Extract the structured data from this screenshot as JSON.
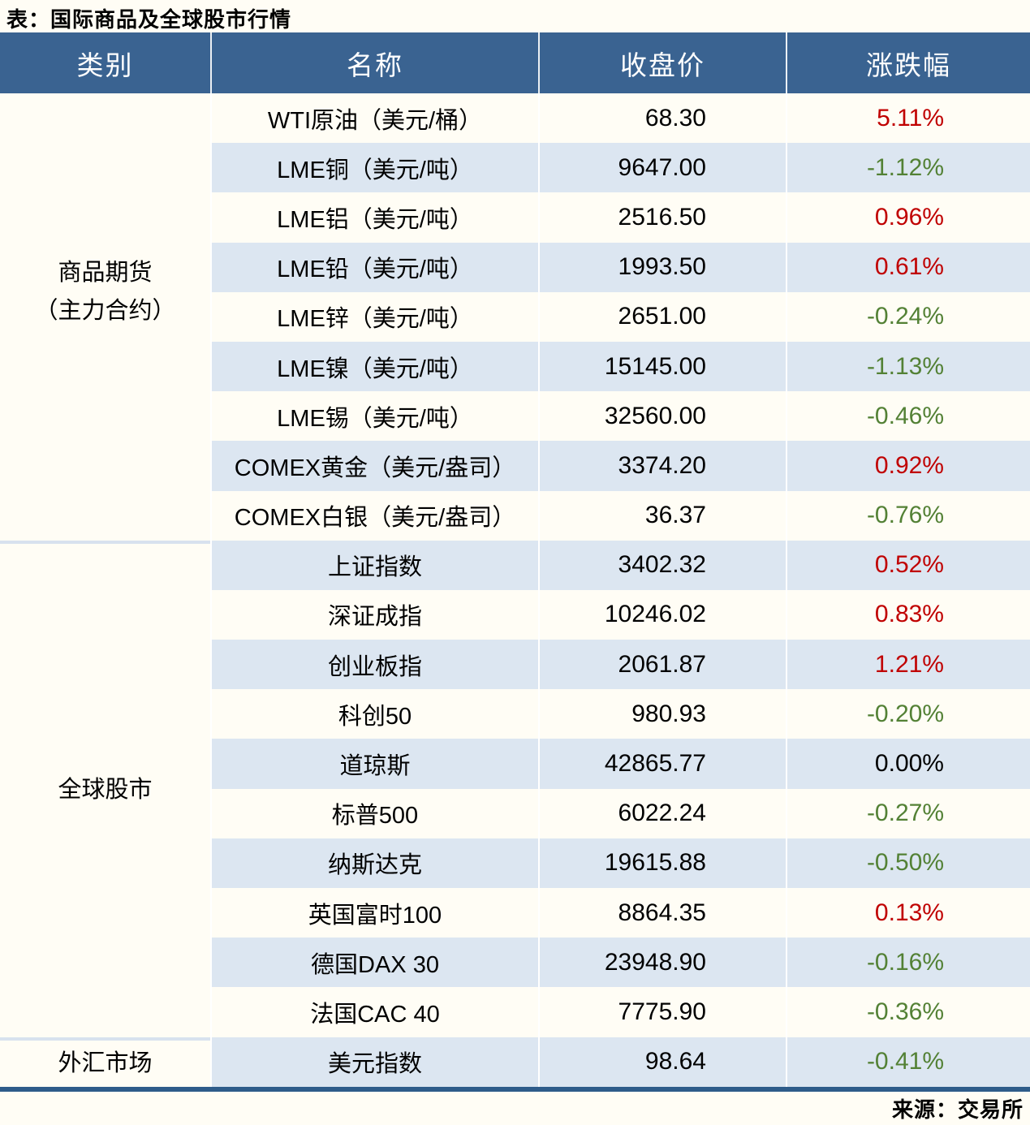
{
  "title": "表：国际商品及全球股市行情",
  "source": "来源：交易所",
  "palette": {
    "header_bg": "#3a6391",
    "alt_row_bg": "#dce6f1",
    "page_bg": "#fffdf5",
    "group_separator": "#d8e2ee",
    "bottom_rule": "#2e5c8a",
    "up": "#c00000",
    "down": "#538135",
    "flat": "#000000"
  },
  "table": {
    "headers": [
      "类别",
      "名称",
      "收盘价",
      "涨跌幅"
    ],
    "categories": [
      {
        "label": "商品期货\n（主力合约）",
        "span": 9
      },
      {
        "label": "全球股市",
        "span": 10
      },
      {
        "label": "外汇市场",
        "span": 1
      }
    ],
    "rows": [
      {
        "name": "WTI原油（美元/桶）",
        "close": "68.30",
        "change": "5.11%",
        "trend": "up"
      },
      {
        "name": "LME铜（美元/吨）",
        "close": "9647.00",
        "change": "-1.12%",
        "trend": "down"
      },
      {
        "name": "LME铝（美元/吨）",
        "close": "2516.50",
        "change": "0.96%",
        "trend": "up"
      },
      {
        "name": "LME铅（美元/吨）",
        "close": "1993.50",
        "change": "0.61%",
        "trend": "up"
      },
      {
        "name": "LME锌（美元/吨）",
        "close": "2651.00",
        "change": "-0.24%",
        "trend": "down"
      },
      {
        "name": "LME镍（美元/吨）",
        "close": "15145.00",
        "change": "-1.13%",
        "trend": "down"
      },
      {
        "name": "LME锡（美元/吨）",
        "close": "32560.00",
        "change": "-0.46%",
        "trend": "down"
      },
      {
        "name": "COMEX黄金（美元/盎司）",
        "close": "3374.20",
        "change": "0.92%",
        "trend": "up"
      },
      {
        "name": "COMEX白银（美元/盎司）",
        "close": "36.37",
        "change": "-0.76%",
        "trend": "down"
      },
      {
        "name": "上证指数",
        "close": "3402.32",
        "change": "0.52%",
        "trend": "up"
      },
      {
        "name": "深证成指",
        "close": "10246.02",
        "change": "0.83%",
        "trend": "up"
      },
      {
        "name": "创业板指",
        "close": "2061.87",
        "change": "1.21%",
        "trend": "up"
      },
      {
        "name": "科创50",
        "close": "980.93",
        "change": "-0.20%",
        "trend": "down"
      },
      {
        "name": "道琼斯",
        "close": "42865.77",
        "change": "0.00%",
        "trend": "flat"
      },
      {
        "name": "标普500",
        "close": "6022.24",
        "change": "-0.27%",
        "trend": "down"
      },
      {
        "name": "纳斯达克",
        "close": "19615.88",
        "change": "-0.50%",
        "trend": "down"
      },
      {
        "name": "英国富时100",
        "close": "8864.35",
        "change": "0.13%",
        "trend": "up"
      },
      {
        "name": "德国DAX 30",
        "close": "23948.90",
        "change": "-0.16%",
        "trend": "down"
      },
      {
        "name": "法国CAC 40",
        "close": "7775.90",
        "change": "-0.36%",
        "trend": "down"
      },
      {
        "name": "美元指数",
        "close": "98.64",
        "change": "-0.41%",
        "trend": "down"
      }
    ]
  },
  "chart_data": {
    "type": "table",
    "title": "表：国际商品及全球股市行情",
    "columns": [
      "类别",
      "名称",
      "收盘价",
      "涨跌幅"
    ],
    "groups": [
      {
        "category": "商品期货（主力合约）",
        "rows": [
          [
            "WTI原油（美元/桶）",
            68.3,
            "5.11%"
          ],
          [
            "LME铜（美元/吨）",
            9647.0,
            "-1.12%"
          ],
          [
            "LME铝（美元/吨）",
            2516.5,
            "0.96%"
          ],
          [
            "LME铅（美元/吨）",
            1993.5,
            "0.61%"
          ],
          [
            "LME锌（美元/吨）",
            2651.0,
            "-0.24%"
          ],
          [
            "LME镍（美元/吨）",
            15145.0,
            "-1.13%"
          ],
          [
            "LME锡（美元/吨）",
            32560.0,
            "-0.46%"
          ],
          [
            "COMEX黄金（美元/盎司）",
            3374.2,
            "0.92%"
          ],
          [
            "COMEX白银（美元/盎司）",
            36.37,
            "-0.76%"
          ]
        ]
      },
      {
        "category": "全球股市",
        "rows": [
          [
            "上证指数",
            3402.32,
            "0.52%"
          ],
          [
            "深证成指",
            10246.02,
            "0.83%"
          ],
          [
            "创业板指",
            2061.87,
            "1.21%"
          ],
          [
            "科创50",
            980.93,
            "-0.20%"
          ],
          [
            "道琼斯",
            42865.77,
            "0.00%"
          ],
          [
            "标普500",
            6022.24,
            "-0.27%"
          ],
          [
            "纳斯达克",
            19615.88,
            "-0.50%"
          ],
          [
            "英国富时100",
            8864.35,
            "0.13%"
          ],
          [
            "德国DAX 30",
            23948.9,
            "-0.16%"
          ],
          [
            "法国CAC 40",
            7775.9,
            "-0.36%"
          ]
        ]
      },
      {
        "category": "外汇市场",
        "rows": [
          [
            "美元指数",
            98.64,
            "-0.41%"
          ]
        ]
      }
    ],
    "color_coding": {
      "positive": "#c00000",
      "negative": "#538135",
      "zero": "#000000"
    },
    "source": "来源：交易所"
  }
}
